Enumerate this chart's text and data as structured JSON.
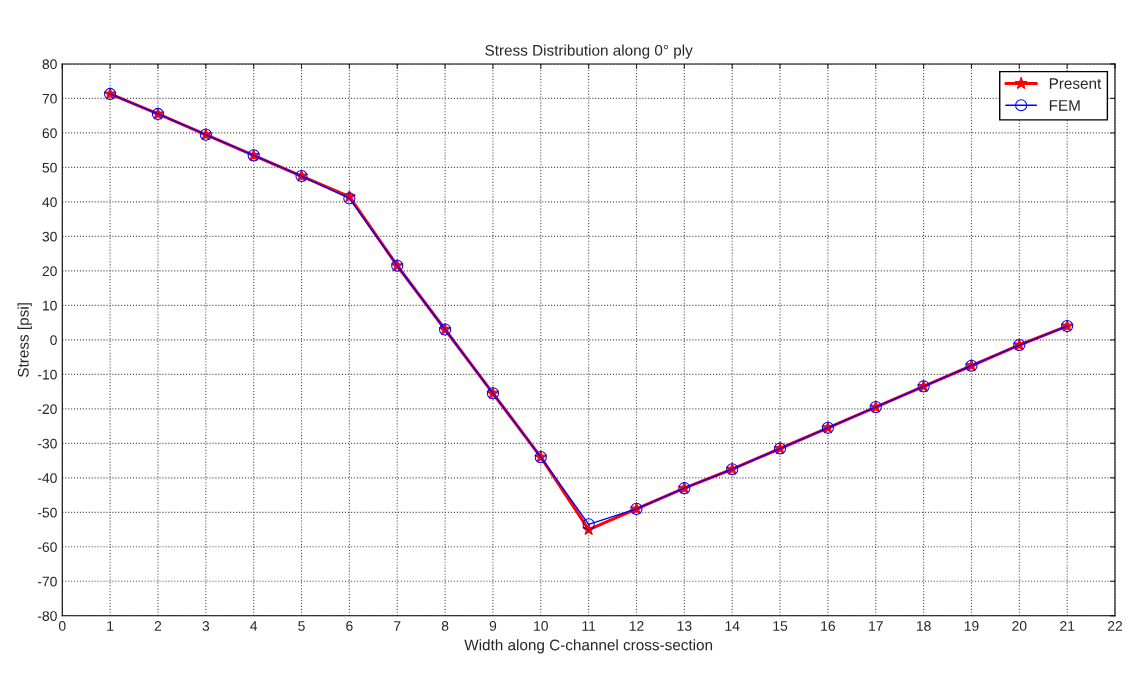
{
  "chart_data": {
    "type": "line",
    "title": "Stress Distribution along 0° ply",
    "xlabel": "Width along C-channel cross-section",
    "ylabel": "Stress [psi]",
    "x": [
      1,
      2,
      3,
      4,
      5,
      6,
      7,
      8,
      9,
      10,
      11,
      12,
      13,
      14,
      15,
      16,
      17,
      18,
      19,
      20,
      21
    ],
    "series": [
      {
        "name": "Present",
        "color": "#ff0000",
        "marker": "star",
        "line_style": "solid",
        "values": [
          71.3,
          65.5,
          59.5,
          53.5,
          47.5,
          41.5,
          21.5,
          3,
          -15.5,
          -34,
          -55,
          -49,
          -43,
          -37.5,
          -31.5,
          -25.5,
          -19.5,
          -13.5,
          -7.5,
          -1.5,
          4
        ]
      },
      {
        "name": "FEM",
        "color": "#0000ff",
        "marker": "circle",
        "line_style": "solid",
        "values": [
          71.3,
          65.5,
          59.5,
          53.5,
          47.5,
          41,
          21.5,
          3,
          -15.5,
          -34,
          -53.5,
          -49,
          -43,
          -37.5,
          -31.5,
          -25.5,
          -19.5,
          -13.5,
          -7.5,
          -1.5,
          4
        ]
      }
    ],
    "xlim": [
      0,
      22
    ],
    "xticks": [
      0,
      1,
      2,
      3,
      4,
      5,
      6,
      7,
      8,
      9,
      10,
      11,
      12,
      13,
      14,
      15,
      16,
      17,
      18,
      19,
      20,
      21,
      22
    ],
    "ylim": [
      -80,
      80
    ],
    "yticks": [
      -80,
      -70,
      -60,
      -50,
      -40,
      -30,
      -20,
      -10,
      0,
      10,
      20,
      30,
      40,
      50,
      60,
      70,
      80
    ],
    "grid": true,
    "legend": "top right"
  }
}
